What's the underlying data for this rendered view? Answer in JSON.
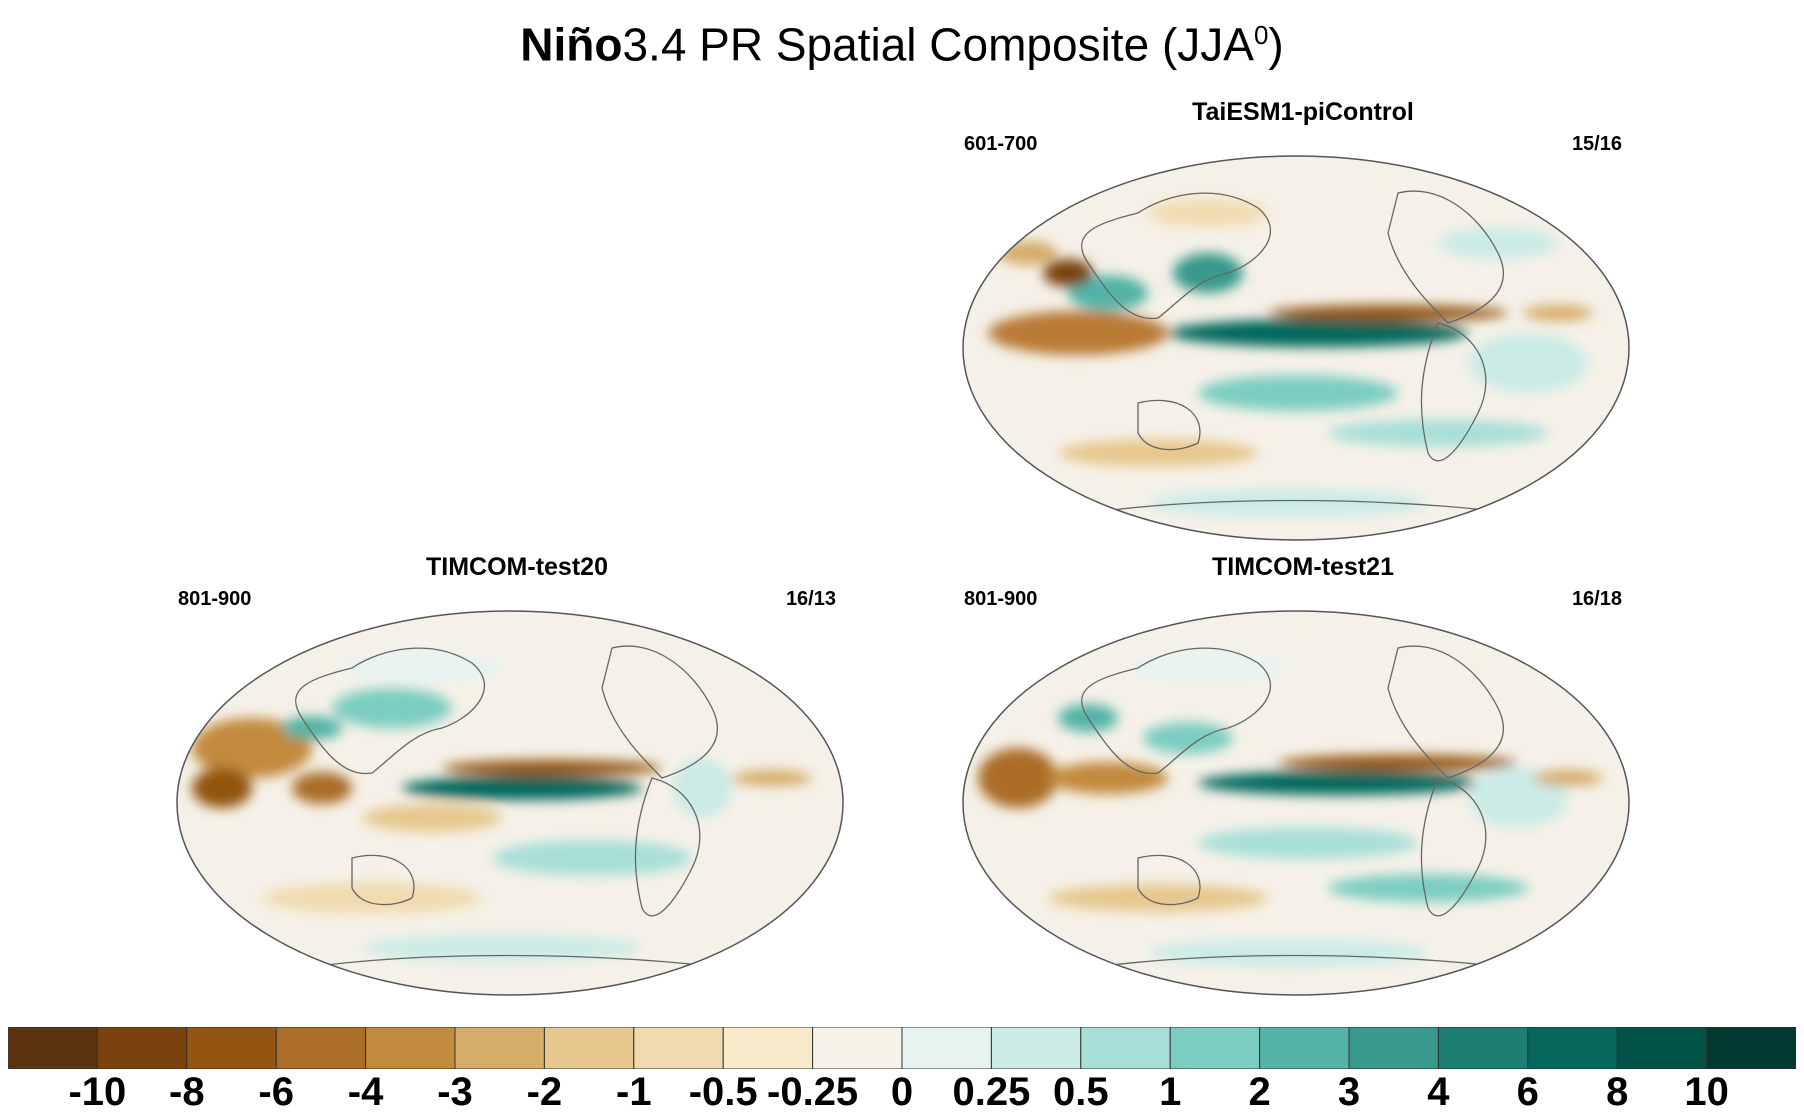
{
  "title": {
    "bold": "Niño",
    "normal": "3.4 PR Spatial Composite (JJA",
    "sup": "0",
    "close": ")"
  },
  "panels": [
    {
      "name": "TaiESM1-piControl",
      "years": "601-700",
      "count": "15/16"
    },
    {
      "name": "TIMCOM-test20",
      "years": "801-900",
      "count": "16/13"
    },
    {
      "name": "TIMCOM-test21",
      "years": "801-900",
      "count": "16/18"
    }
  ],
  "colorbar": {
    "colors": [
      "#5c3310",
      "#7a430e",
      "#935511",
      "#ab6d28",
      "#c28a3d",
      "#d6ac69",
      "#e6c88e",
      "#f0dbb0",
      "#f6eacb",
      "#f5f2ea",
      "#e6f3f1",
      "#cbebe6",
      "#a8dfd8",
      "#7ccdc1",
      "#52b3a6",
      "#38998c",
      "#1d7e72",
      "#06675c",
      "#005246",
      "#003a30"
    ],
    "labels": [
      "-10",
      "-8",
      "-6",
      "-4",
      "-3",
      "-2",
      "-1",
      "-0.5",
      "-0.25",
      "0",
      "0.25",
      "0.5",
      "1",
      "2",
      "3",
      "4",
      "6",
      "8",
      "10"
    ]
  }
}
